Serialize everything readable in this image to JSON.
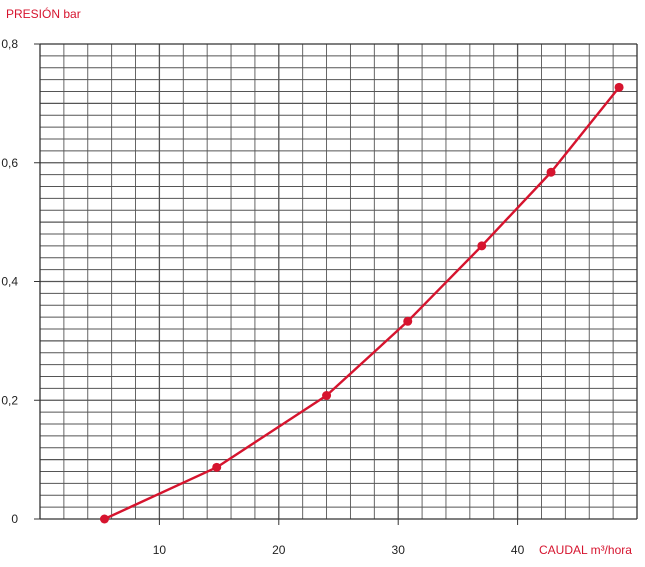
{
  "chart_data": {
    "type": "line",
    "title": "",
    "ylabel": "PRESIÓN bar",
    "xlabel": "CAUDAL m³/hora",
    "xlim": [
      0,
      50
    ],
    "ylim": [
      0,
      0.8
    ],
    "grid": true,
    "x_ticks": [
      10,
      20,
      30,
      40
    ],
    "x_tick_labels": [
      "10",
      "20",
      "30",
      "40"
    ],
    "y_ticks": [
      0,
      0.2,
      0.4,
      0.6,
      0.8
    ],
    "y_tick_labels": [
      "0",
      "0,2",
      "0,4",
      "0,6",
      "0,8"
    ],
    "series": [
      {
        "x": [
          5.4,
          14.8,
          24.0,
          30.8,
          37.0,
          42.8,
          48.5
        ],
        "y": [
          0.0,
          0.087,
          0.208,
          0.333,
          0.46,
          0.584,
          0.727
        ]
      }
    ],
    "colors": {
      "series": "#d6142e",
      "label": "#d6142e",
      "grid": "#555555",
      "axis": "#333333",
      "tick_text": "#222222"
    }
  }
}
